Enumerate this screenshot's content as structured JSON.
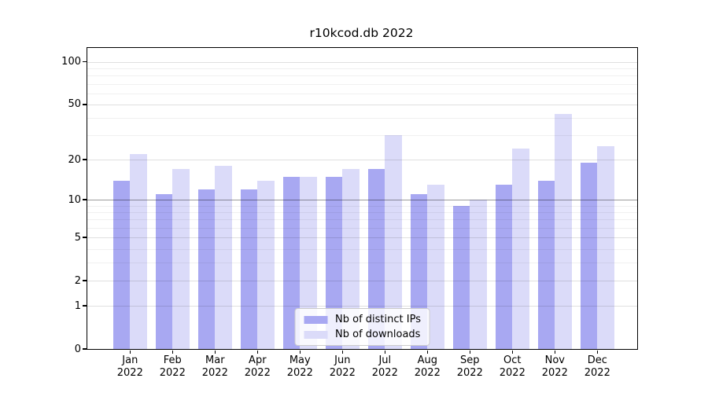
{
  "chart_data": {
    "type": "bar",
    "title": "r10kcod.db 2022",
    "categories": [
      "Jan",
      "Feb",
      "Mar",
      "Apr",
      "May",
      "Jun",
      "Jul",
      "Aug",
      "Sep",
      "Oct",
      "Nov",
      "Dec"
    ],
    "year_label": "2022",
    "series": [
      {
        "name": "Nb of distinct IPs",
        "color": "#a8a8f2",
        "values": [
          14,
          11,
          12,
          12,
          15,
          15,
          17,
          11,
          9,
          13,
          14,
          19
        ]
      },
      {
        "name": "Nb of downloads",
        "color": "#dbdbf9",
        "values": [
          22,
          17,
          18,
          14,
          15,
          17,
          30,
          13,
          10,
          24,
          43,
          25
        ]
      }
    ],
    "xlabel": "",
    "ylabel": "",
    "yscale": "log1p",
    "ylim": [
      0,
      125.3
    ],
    "y_major_ticks": [
      0,
      1,
      2,
      5,
      10,
      20,
      50,
      100
    ],
    "y_minor_gridlines": [
      3,
      4,
      6,
      7,
      8,
      9,
      30,
      40,
      60,
      70,
      80,
      90
    ],
    "refline_y": 10,
    "grid": "both",
    "legend_position": "lower center"
  },
  "colors": {
    "background": "#ffffff",
    "spine": "#000000",
    "grid_major": "rgba(0,0,0,0.12)",
    "grid_minor": "rgba(0,0,0,0.06)",
    "refline": "rgba(0,0,0,0.30)"
  }
}
